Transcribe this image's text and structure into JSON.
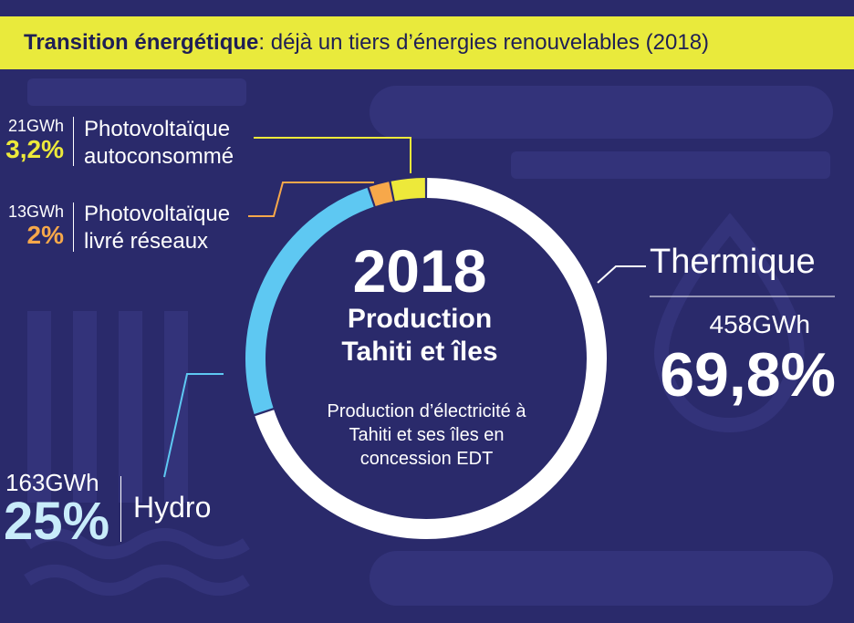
{
  "banner": {
    "title_bold": "Transition énergétique",
    "title_rest": " : déjà un tiers d’énergies renouvelables (2018)"
  },
  "center": {
    "year": "2018",
    "line1": "Production",
    "line2": "Tahiti et îles",
    "desc1": "Production d’électricité à",
    "desc2": "Tahiti et ses îles en",
    "desc3": "concession EDT"
  },
  "labels": {
    "pv_auto": {
      "gwh": "21GWh",
      "pct": "3,2%",
      "name1": "Photovoltaïque",
      "name2": "autoconsommé"
    },
    "pv_reseau": {
      "gwh": "13GWh",
      "pct": "2%",
      "name1": "Photovoltaïque",
      "name2": "livré réseaux"
    },
    "thermique": {
      "name": "Thermique",
      "gwh": "458GWh",
      "pct": "69,8%"
    },
    "hydro": {
      "gwh": "163GWh",
      "pct": "25%",
      "name": "Hydro"
    }
  },
  "colors": {
    "background": "#2a2a6b",
    "banner": "#e9ea3c",
    "thermique": "#ffffff",
    "hydro": "#5ec8f2",
    "pv_reseau": "#f7a84a",
    "pv_auto": "#ede93a"
  },
  "chart_data": {
    "type": "pie",
    "title": "Transition énergétique : déjà un tiers d’énergies renouvelables (2018)",
    "categories": [
      "Thermique",
      "Hydro",
      "Photovoltaïque livré réseaux",
      "Photovoltaïque autoconsommé"
    ],
    "values": [
      458,
      163,
      13,
      21
    ],
    "percent": [
      69.8,
      25,
      2,
      3.2
    ],
    "unit": "GWh",
    "colors": [
      "#ffffff",
      "#5ec8f2",
      "#f7a84a",
      "#ede93a"
    ]
  }
}
